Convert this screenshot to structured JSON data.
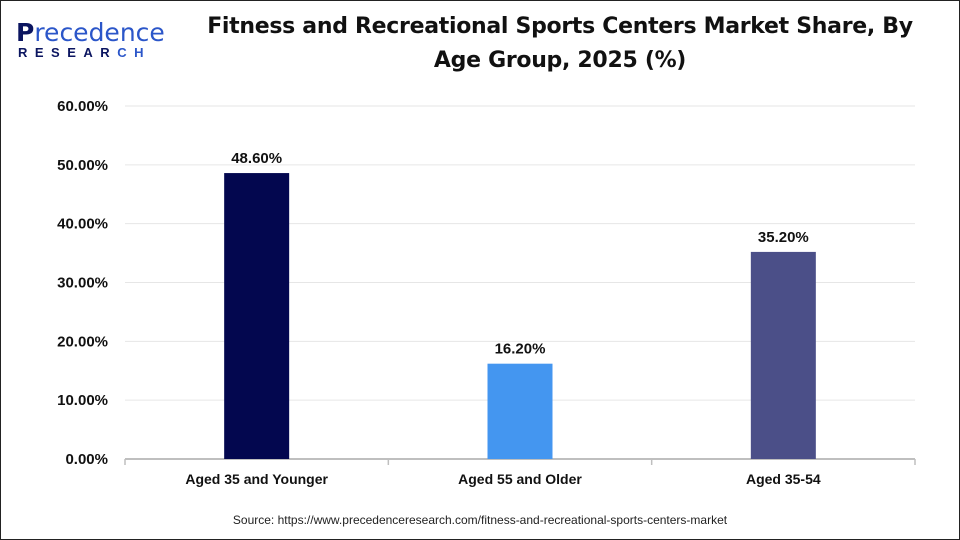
{
  "logo": {
    "text_top": "Precedence",
    "text_bottom": "RESEARCH"
  },
  "chart_data": {
    "type": "bar",
    "title": "Fitness and Recreational Sports Centers Market Share, By Age Group, 2025 (%)",
    "title_lines": [
      "Fitness and Recreational Sports Centers Market Share, By",
      "Age Group, 2025 (%)"
    ],
    "categories": [
      "Aged 35 and Younger",
      "Aged 55 and Older",
      "Aged 35-54"
    ],
    "values": [
      48.6,
      16.2,
      35.2
    ],
    "data_labels": [
      "48.60%",
      "16.20%",
      "35.20%"
    ],
    "colors": [
      "#03074f",
      "#4496f0",
      "#4b4f88"
    ],
    "ylim": [
      0,
      60
    ],
    "yticks": [
      0,
      10,
      20,
      30,
      40,
      50,
      60
    ],
    "ytick_labels": [
      "0.00%",
      "10.00%",
      "20.00%",
      "30.00%",
      "40.00%",
      "50.00%",
      "60.00%"
    ],
    "grid": true,
    "xlabel": "",
    "ylabel": ""
  },
  "source": "Source: https://www.precedenceresearch.com/fitness-and-recreational-sports-centers-market"
}
